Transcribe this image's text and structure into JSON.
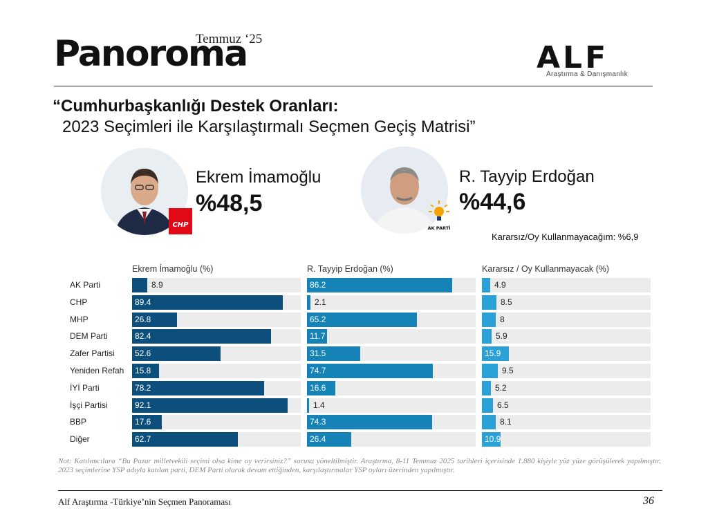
{
  "header": {
    "brand": "Panoroma",
    "issue": "Temmuz ‘25",
    "company_logo": "ALF",
    "company_subtitle": "Araştırma & Danışmanlık"
  },
  "title": {
    "line1": "“Cumhurbaşkanlığı Destek Oranları:",
    "line2": "2023 Seçimleri ile Karşılaştırmalı Seçmen Geçiş Matrisi”"
  },
  "candidates": [
    {
      "name": "Ekrem İmamoğlu",
      "percent": "%48,5",
      "party_badge": "CHP"
    },
    {
      "name": "R. Tayyip Erdoğan",
      "percent": "%44,6",
      "party_badge": "AK PARTİ"
    }
  ],
  "undecided_note": "Kararsız/Oy Kullanmayacağım: %6,9",
  "chart_data": {
    "type": "bar",
    "orientation": "horizontal",
    "title": "2023 Seçimleri ile Karşılaştırmalı Seçmen Geçiş Matrisi",
    "categories": [
      "AK Parti",
      "CHP",
      "MHP",
      "DEM Parti",
      "Zafer Partisi",
      "Yeniden Refah",
      "İYİ Parti",
      "İşçi Partisi",
      "BBP",
      "Diğer"
    ],
    "xlim": [
      0,
      100
    ],
    "series": [
      {
        "name": "Ekrem İmamoğlu (%)",
        "color": "#0d4f7c",
        "values": [
          8.9,
          89.4,
          26.8,
          82.4,
          52.6,
          15.8,
          78.2,
          92.1,
          17.6,
          62.7
        ],
        "labels": [
          "8.9",
          "89.4",
          "26.8",
          "82.4",
          "52.6",
          "15.8",
          "78.2",
          "92.1",
          "17.6",
          "62.7"
        ]
      },
      {
        "name": "R. Tayyip Erdoğan (%)",
        "color": "#1583b6",
        "values": [
          86.2,
          2.1,
          65.2,
          11.7,
          31.5,
          74.7,
          16.6,
          1.4,
          74.3,
          26.4
        ],
        "labels": [
          "86.2",
          "2.1",
          "65.2",
          "11.7",
          "31.5",
          "74.7",
          "16.6",
          "1.4",
          "74.3",
          "26.4"
        ]
      },
      {
        "name": "Kararsız / Oy Kullanmayacak (%)",
        "color": "#2aa0d6",
        "values": [
          4.9,
          8.5,
          8,
          5.9,
          15.9,
          9.5,
          5.2,
          6.5,
          8.1,
          10.9
        ],
        "labels": [
          "4.9",
          "8.5",
          "8",
          "5.9",
          "15.9",
          "9.5",
          "5.2",
          "6.5",
          "8.1",
          "10.9"
        ]
      }
    ]
  },
  "footnote": "Not: Katılımcılara “Bu Pazar milletvekili seçimi olsa kime oy verirsiniz?” sorusu yöneltilmiştir. Araştırma, 8-11 Temmuz 2025 tarihleri içerisinde 1.880 kişiyle yüz yüze görüşülerek yapılmıştır. 2023 seçimlerine YSP adıyla katılan parti, DEM Parti olarak devam ettiğinden, karşılaştırmalar YSP oyları üzerinden yapılmıştır.",
  "footer": {
    "text": "Alf Araştırma -Türkiye’nin Seçmen Panoraması",
    "page_number": "36"
  }
}
